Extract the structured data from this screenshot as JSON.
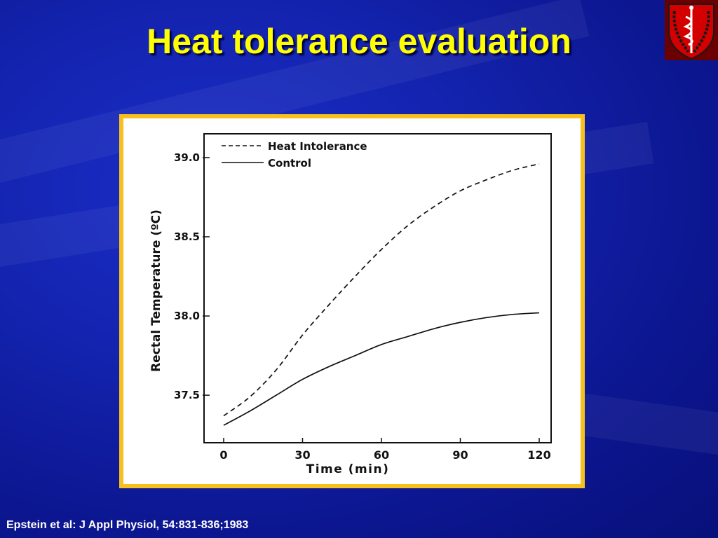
{
  "slide": {
    "title": "Heat tolerance evaluation",
    "citation": "Epstein et al: J Appl Physiol, 54:831-836;1983"
  },
  "logo": {
    "icon": "caduceus-shield-icon",
    "colors": [
      "#d40000",
      "#1a1a1a",
      "#ffffff"
    ]
  },
  "colors": {
    "title": "#ffff00",
    "frame": "#f6c01e",
    "background": "#1424b0"
  },
  "chart_data": {
    "type": "line",
    "xlabel": "Time (min)",
    "ylabel": "Rectal Temperature (ºC)",
    "xticks": [
      "0",
      "30",
      "60",
      "90",
      "120"
    ],
    "yticks": [
      "37.5",
      "38.0",
      "38.5",
      "39.0"
    ],
    "xlim": [
      0,
      120
    ],
    "ylim": [
      37.2,
      39.15
    ],
    "legend_position": "top-left",
    "series": [
      {
        "name": "Heat Intolerance",
        "style": "dashed",
        "x": [
          0,
          10,
          20,
          30,
          40,
          50,
          60,
          70,
          80,
          90,
          100,
          110,
          120
        ],
        "values": [
          37.37,
          37.49,
          37.66,
          37.88,
          38.07,
          38.25,
          38.42,
          38.57,
          38.69,
          38.79,
          38.86,
          38.92,
          38.96
        ]
      },
      {
        "name": "Control",
        "style": "solid",
        "x": [
          0,
          10,
          20,
          30,
          40,
          50,
          60,
          70,
          80,
          90,
          100,
          110,
          120
        ],
        "values": [
          37.31,
          37.4,
          37.5,
          37.6,
          37.68,
          37.75,
          37.82,
          37.87,
          37.92,
          37.96,
          37.99,
          38.01,
          38.02
        ]
      }
    ]
  }
}
